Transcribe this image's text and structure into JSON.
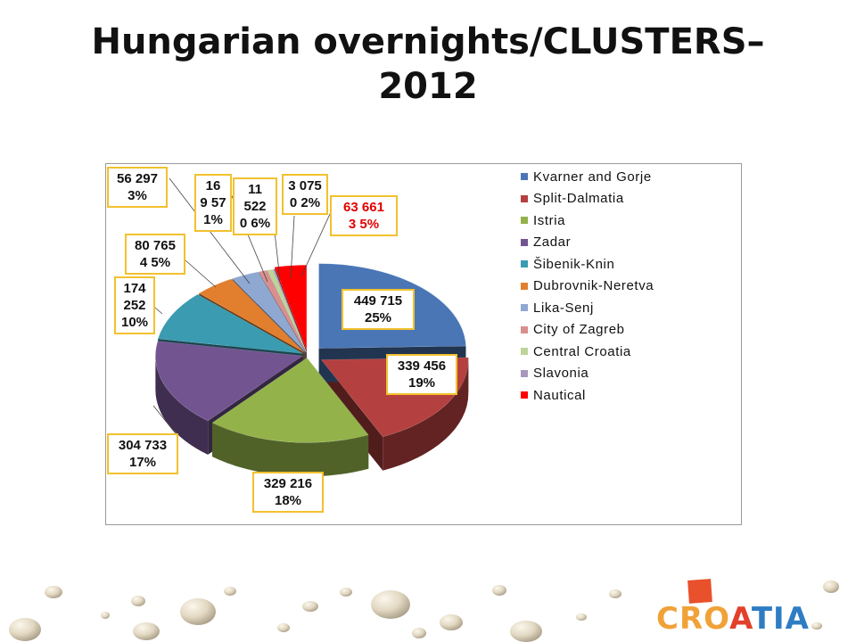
{
  "title": {
    "line1": "Hungarian overnights/CLUSTERS–",
    "line2": "2012"
  },
  "chart_data": {
    "type": "pie",
    "title": "Hungarian overnights/CLUSTERS–2012",
    "legend_position": "right",
    "series": [
      {
        "name": "Kvarner and Gorje",
        "value": 449715,
        "value_label": "449 715",
        "percent_label": "25%",
        "color": "#4a76b5"
      },
      {
        "name": "Split-Dalmatia",
        "value": 339456,
        "value_label": "339 456",
        "percent_label": "19%",
        "color": "#b4403f"
      },
      {
        "name": "Istria",
        "value": 329216,
        "value_label": "329 216",
        "percent_label": "18%",
        "color": "#93b34a"
      },
      {
        "name": "Zadar",
        "value": 304733,
        "value_label": "304 733",
        "percent_label": "17%",
        "color": "#725491"
      },
      {
        "name": "Šibenik-Knin",
        "value": 174252,
        "value_label": "174\n252",
        "percent_label": "10%",
        "color": "#3a9bb1"
      },
      {
        "name": "Dubrovnik-Neretva",
        "value": 80765,
        "value_label": "80 765",
        "percent_label": "4 5%",
        "color": "#e17f2f"
      },
      {
        "name": "Lika-Senj",
        "value": 56297,
        "value_label": "56 297",
        "percent_label": "3%",
        "color": "#8fa8d2"
      },
      {
        "name": "City of Zagreb",
        "value": 16957,
        "value_label": "16\n9 57",
        "percent_label": "1%",
        "color": "#d98f8e"
      },
      {
        "name": "Central Croatia",
        "value": 11522,
        "value_label": "11\n522",
        "percent_label": "0 6%",
        "color": "#bdd49a"
      },
      {
        "name": "Slavonia",
        "value": 3075,
        "value_label": "3 075",
        "percent_label": "0 2%",
        "color": "#a797bf"
      },
      {
        "name": "Nautical",
        "value": 63661,
        "value_label": "63 661",
        "percent_label": "3 5%",
        "color": "#ff0000"
      }
    ]
  },
  "logo": {
    "text_left": "CRO",
    "text_a": "A",
    "text_right": "TIA"
  }
}
